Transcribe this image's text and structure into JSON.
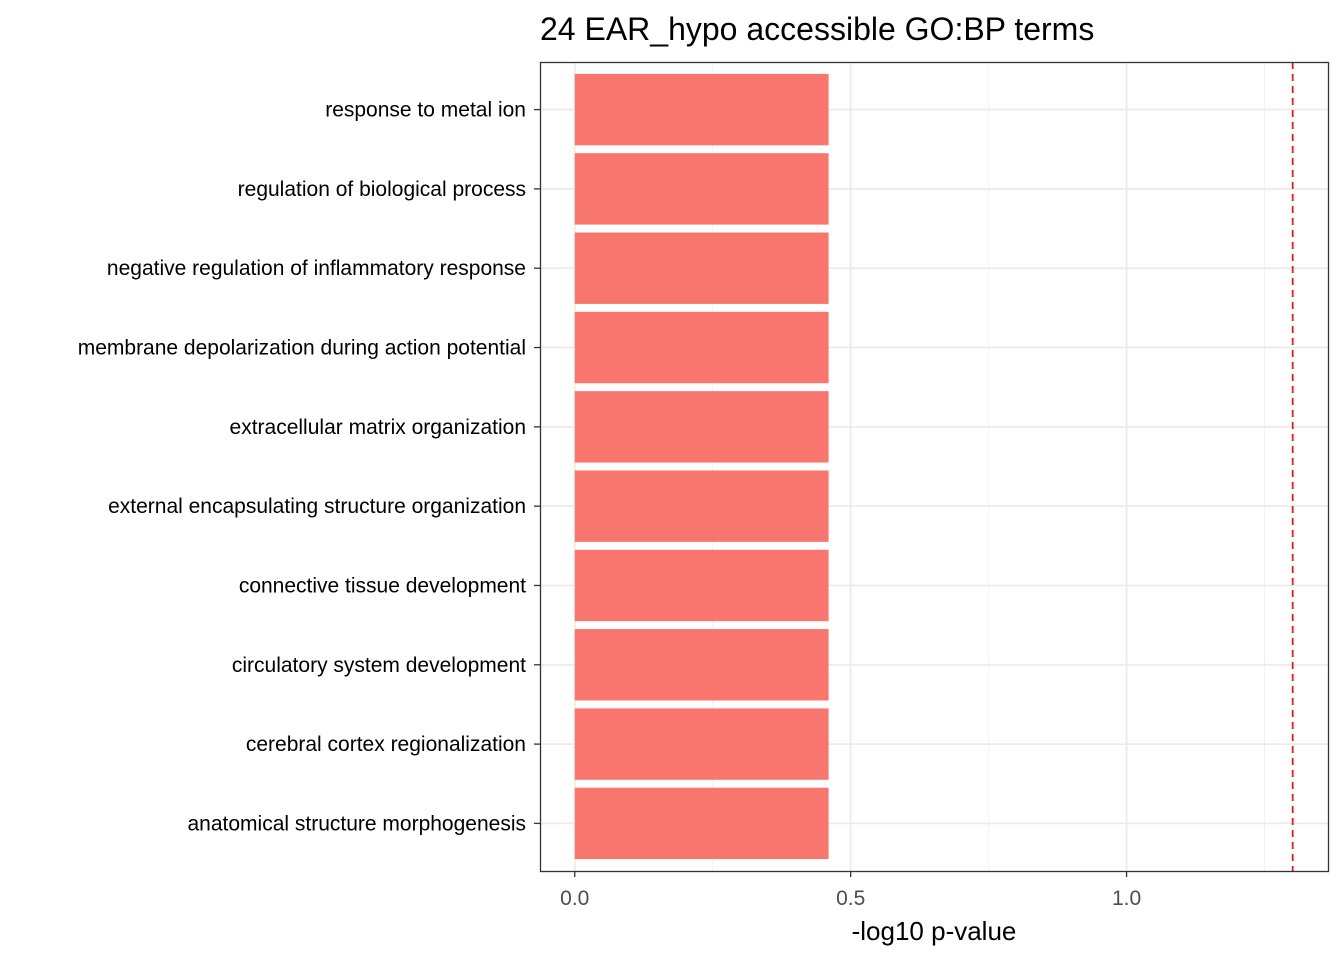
{
  "chart_data": {
    "type": "bar",
    "orientation": "horizontal",
    "title": "24 EAR_hypo accessible GO:BP terms",
    "xlabel": "-log10 p-value",
    "ylabel": "",
    "categories": [
      "response to metal ion",
      "regulation of biological process",
      "negative regulation of inflammatory response",
      "membrane depolarization during action potential",
      "extracellular matrix organization",
      "external encapsulating structure organization",
      "connective tissue development",
      "circulatory system development",
      "cerebral cortex regionalization",
      "anatomical structure morphogenesis"
    ],
    "values": [
      0.46,
      0.46,
      0.46,
      0.46,
      0.46,
      0.46,
      0.46,
      0.46,
      0.46,
      0.46
    ],
    "xlim": [
      -0.063,
      1.365
    ],
    "x_ticks": [
      0.0,
      0.5,
      1.0
    ],
    "x_tick_labels": [
      "0.0",
      "0.5",
      "1.0"
    ],
    "threshold_line": {
      "x": 1.301,
      "style": "dashed",
      "color": "#e41a1c"
    },
    "bar_color": "#f8766d",
    "grid": true,
    "legend": "none"
  }
}
